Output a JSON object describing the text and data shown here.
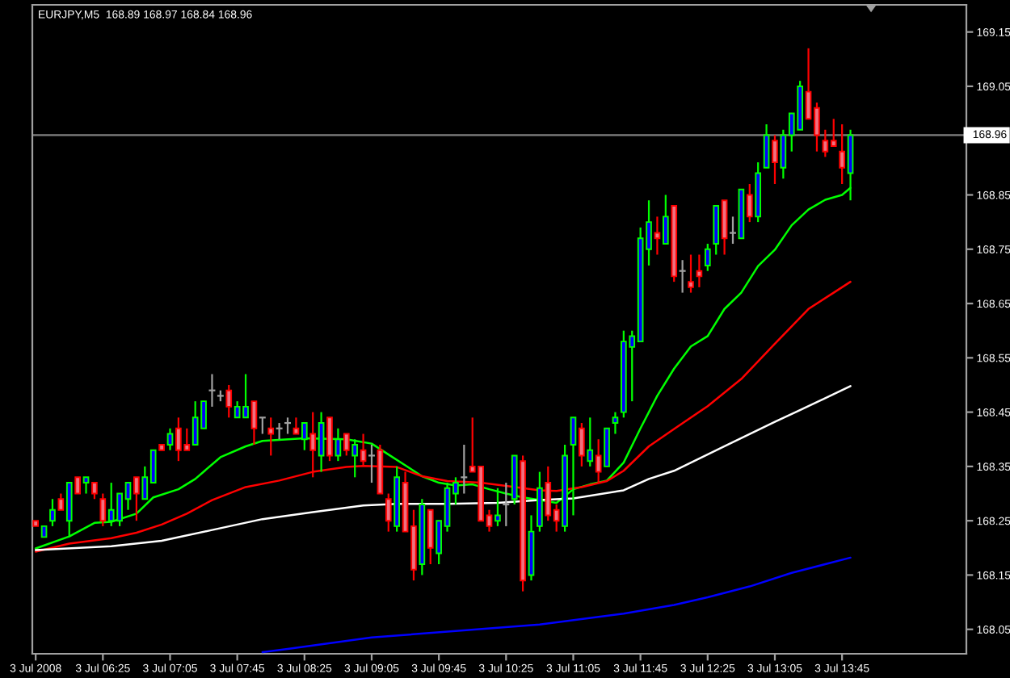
{
  "chart_data": {
    "type": "candlestick",
    "title": "EURJPY,M5  168.89 168.97 168.84 168.96",
    "x": [
      "2008-07-03T05:45",
      "2008-07-03T05:50",
      "2008-07-03T05:55",
      "2008-07-03T06:00",
      "2008-07-03T06:05",
      "2008-07-03T06:10",
      "2008-07-03T06:15",
      "2008-07-03T06:20",
      "2008-07-03T06:25",
      "2008-07-03T06:30",
      "2008-07-03T06:35",
      "2008-07-03T06:40",
      "2008-07-03T06:45",
      "2008-07-03T06:50",
      "2008-07-03T06:55",
      "2008-07-03T07:00",
      "2008-07-03T07:05",
      "2008-07-03T07:10",
      "2008-07-03T07:15",
      "2008-07-03T07:20",
      "2008-07-03T07:25",
      "2008-07-03T07:30",
      "2008-07-03T07:35",
      "2008-07-03T07:40",
      "2008-07-03T07:45",
      "2008-07-03T07:50",
      "2008-07-03T07:55",
      "2008-07-03T08:00",
      "2008-07-03T08:05",
      "2008-07-03T08:10",
      "2008-07-03T08:15",
      "2008-07-03T08:20",
      "2008-07-03T08:25",
      "2008-07-03T08:30",
      "2008-07-03T08:35",
      "2008-07-03T08:40",
      "2008-07-03T08:45",
      "2008-07-03T08:50",
      "2008-07-03T08:55",
      "2008-07-03T09:00",
      "2008-07-03T09:05",
      "2008-07-03T09:10",
      "2008-07-03T09:15",
      "2008-07-03T09:20",
      "2008-07-03T09:25",
      "2008-07-03T09:30",
      "2008-07-03T09:35",
      "2008-07-03T09:40",
      "2008-07-03T09:45",
      "2008-07-03T09:50",
      "2008-07-03T09:55",
      "2008-07-03T10:00",
      "2008-07-03T10:05",
      "2008-07-03T10:10",
      "2008-07-03T10:15",
      "2008-07-03T10:20",
      "2008-07-03T10:25",
      "2008-07-03T10:30",
      "2008-07-03T10:35",
      "2008-07-03T10:40",
      "2008-07-03T10:45",
      "2008-07-03T10:50",
      "2008-07-03T10:55",
      "2008-07-03T11:00",
      "2008-07-03T11:05",
      "2008-07-03T11:10",
      "2008-07-03T11:15",
      "2008-07-03T11:20",
      "2008-07-03T11:25",
      "2008-07-03T11:30",
      "2008-07-03T11:35",
      "2008-07-03T11:40",
      "2008-07-03T11:45",
      "2008-07-03T11:50",
      "2008-07-03T11:55",
      "2008-07-03T12:00",
      "2008-07-03T12:05",
      "2008-07-03T12:10",
      "2008-07-03T12:15",
      "2008-07-03T12:20",
      "2008-07-03T12:25",
      "2008-07-03T12:30",
      "2008-07-03T12:35",
      "2008-07-03T12:40",
      "2008-07-03T12:45",
      "2008-07-03T12:50",
      "2008-07-03T12:55",
      "2008-07-03T13:00",
      "2008-07-03T13:05",
      "2008-07-03T13:10",
      "2008-07-03T13:15",
      "2008-07-03T13:20",
      "2008-07-03T13:25",
      "2008-07-03T13:30",
      "2008-07-03T13:35",
      "2008-07-03T13:40",
      "2008-07-03T13:45",
      "2008-07-03T13:50"
    ],
    "ohlc": [
      [
        168.25,
        168.25,
        168.24,
        168.24
      ],
      [
        168.22,
        168.24,
        168.22,
        168.24
      ],
      [
        168.25,
        168.29,
        168.24,
        168.27
      ],
      [
        168.29,
        168.3,
        168.27,
        168.27
      ],
      [
        168.25,
        168.32,
        168.22,
        168.32
      ],
      [
        168.33,
        168.33,
        168.3,
        168.3
      ],
      [
        168.32,
        168.33,
        168.3,
        168.33
      ],
      [
        168.32,
        168.32,
        168.29,
        168.3
      ],
      [
        168.29,
        168.3,
        168.24,
        168.25
      ],
      [
        168.25,
        168.32,
        168.24,
        168.27
      ],
      [
        168.25,
        168.3,
        168.24,
        168.3
      ],
      [
        168.29,
        168.32,
        168.27,
        168.32
      ],
      [
        168.33,
        168.33,
        168.25,
        168.3
      ],
      [
        168.29,
        168.35,
        168.29,
        168.33
      ],
      [
        168.32,
        168.38,
        168.32,
        168.38
      ],
      [
        168.39,
        168.39,
        168.38,
        168.38
      ],
      [
        168.39,
        168.42,
        168.38,
        168.41
      ],
      [
        168.42,
        168.44,
        168.36,
        168.38
      ],
      [
        168.39,
        168.42,
        168.38,
        168.38
      ],
      [
        168.39,
        168.47,
        168.39,
        168.44
      ],
      [
        168.42,
        168.47,
        168.42,
        168.47
      ],
      [
        168.49,
        168.52,
        168.46,
        168.49
      ],
      [
        168.48,
        168.49,
        168.47,
        168.48
      ],
      [
        168.49,
        168.5,
        168.44,
        168.46
      ],
      [
        168.44,
        168.47,
        168.44,
        168.46
      ],
      [
        168.44,
        168.52,
        168.44,
        168.46
      ],
      [
        168.47,
        168.47,
        168.39,
        168.42
      ],
      [
        168.44,
        168.44,
        168.41,
        168.44
      ],
      [
        168.42,
        168.44,
        168.37,
        168.41
      ],
      [
        168.42,
        168.43,
        168.4,
        168.42
      ],
      [
        168.43,
        168.44,
        168.41,
        168.43
      ],
      [
        168.42,
        168.44,
        168.41,
        168.41
      ],
      [
        168.4,
        168.43,
        168.38,
        168.43
      ],
      [
        168.41,
        168.45,
        168.33,
        168.38
      ],
      [
        168.37,
        168.45,
        168.34,
        168.43
      ],
      [
        168.44,
        168.44,
        168.36,
        168.37
      ],
      [
        168.37,
        168.42,
        168.36,
        168.4
      ],
      [
        168.41,
        168.41,
        168.37,
        168.38
      ],
      [
        168.37,
        168.4,
        168.33,
        168.39
      ],
      [
        168.38,
        168.41,
        168.35,
        168.36
      ],
      [
        168.37,
        168.39,
        168.32,
        168.37
      ],
      [
        168.38,
        168.39,
        168.3,
        168.3
      ],
      [
        168.29,
        168.3,
        168.23,
        168.25
      ],
      [
        168.24,
        168.35,
        168.23,
        168.33
      ],
      [
        168.32,
        168.34,
        168.23,
        168.23
      ],
      [
        168.24,
        168.27,
        168.14,
        168.16
      ],
      [
        168.17,
        168.29,
        168.15,
        168.28
      ],
      [
        168.27,
        168.27,
        168.17,
        168.2
      ],
      [
        168.19,
        168.25,
        168.17,
        168.25
      ],
      [
        168.24,
        168.32,
        168.23,
        168.31
      ],
      [
        168.3,
        168.33,
        168.28,
        168.32
      ],
      [
        168.33,
        168.39,
        168.3,
        168.33
      ],
      [
        168.35,
        168.44,
        168.34,
        168.34
      ],
      [
        168.35,
        168.35,
        168.25,
        168.25
      ],
      [
        168.26,
        168.27,
        168.23,
        168.24
      ],
      [
        168.25,
        168.31,
        168.24,
        168.26
      ],
      [
        168.28,
        168.32,
        168.24,
        168.28
      ],
      [
        168.29,
        168.37,
        168.28,
        168.37
      ],
      [
        168.36,
        168.37,
        168.12,
        168.14
      ],
      [
        168.15,
        168.26,
        168.14,
        168.23
      ],
      [
        168.24,
        168.34,
        168.23,
        168.31
      ],
      [
        168.32,
        168.35,
        168.25,
        168.26
      ],
      [
        168.27,
        168.28,
        168.23,
        168.25
      ],
      [
        168.24,
        168.39,
        168.23,
        168.37
      ],
      [
        168.39,
        168.44,
        168.26,
        168.44
      ],
      [
        168.42,
        168.43,
        168.35,
        168.37
      ],
      [
        168.36,
        168.44,
        168.35,
        168.38
      ],
      [
        168.37,
        168.4,
        168.32,
        168.34
      ],
      [
        168.35,
        168.42,
        168.35,
        168.42
      ],
      [
        168.43,
        168.45,
        168.41,
        168.44
      ],
      [
        168.45,
        168.6,
        168.44,
        168.58
      ],
      [
        168.57,
        168.6,
        168.47,
        168.59
      ],
      [
        168.58,
        168.79,
        168.58,
        168.77
      ],
      [
        168.75,
        168.84,
        168.72,
        168.8
      ],
      [
        168.78,
        168.81,
        168.74,
        168.77
      ],
      [
        168.76,
        168.85,
        168.76,
        168.81
      ],
      [
        168.83,
        168.83,
        168.69,
        168.7
      ],
      [
        168.71,
        168.73,
        168.67,
        168.71
      ],
      [
        168.69,
        168.74,
        168.67,
        168.68
      ],
      [
        168.71,
        168.74,
        168.68,
        168.7
      ],
      [
        168.72,
        168.76,
        168.71,
        168.75
      ],
      [
        168.76,
        168.83,
        168.74,
        168.83
      ],
      [
        168.84,
        168.84,
        168.74,
        168.77
      ],
      [
        168.78,
        168.81,
        168.76,
        168.78
      ],
      [
        168.77,
        168.86,
        168.77,
        168.86
      ],
      [
        168.85,
        168.87,
        168.8,
        168.81
      ],
      [
        168.81,
        168.91,
        168.8,
        168.89
      ],
      [
        168.9,
        168.98,
        168.9,
        168.96
      ],
      [
        168.95,
        168.96,
        168.87,
        168.91
      ],
      [
        168.9,
        168.97,
        168.88,
        168.96
      ],
      [
        168.96,
        169.0,
        168.93,
        169.0
      ],
      [
        168.97,
        169.06,
        168.97,
        169.05
      ],
      [
        169.04,
        169.12,
        168.99,
        168.99
      ],
      [
        169.01,
        169.02,
        168.93,
        168.96
      ],
      [
        168.95,
        168.97,
        168.92,
        168.93
      ],
      [
        168.95,
        168.99,
        168.94,
        168.94
      ],
      [
        168.93,
        168.98,
        168.87,
        168.9
      ],
      [
        168.89,
        168.97,
        168.84,
        168.96
      ]
    ],
    "colors": [
      [
        "#ff0000",
        "#f07080"
      ],
      [
        "#00ff00",
        "#0000ff"
      ],
      [
        "#00ff00",
        "#0000ff"
      ],
      [
        "#ff0000",
        "#f07080"
      ],
      [
        "#00ff00",
        "#0000ff"
      ],
      [
        "#ff0000",
        "#f07080"
      ],
      [
        "#00ff00",
        "#0000ff"
      ],
      [
        "#ff0000",
        "#f07080"
      ],
      [
        "#ff0000",
        "#f07080"
      ],
      [
        "#00ff00",
        "#0000ff"
      ],
      [
        "#00ff00",
        "#0000ff"
      ],
      [
        "#00ff00",
        "#0000ff"
      ],
      [
        "#ff0000",
        "#f07080"
      ],
      [
        "#00ff00",
        "#0000ff"
      ],
      [
        "#00ff00",
        "#0000ff"
      ],
      [
        "#ff0000",
        "#f07080"
      ],
      [
        "#00ff00",
        "#0000ff"
      ],
      [
        "#ff0000",
        "#f07080"
      ],
      [
        "#ff0000",
        "#f07080"
      ],
      [
        "#00ff00",
        "#0000ff"
      ],
      [
        "#00ff00",
        "#0000ff"
      ],
      [
        "#a0a0a0",
        "#a0a0a0"
      ],
      [
        "#a0a0a0",
        "#a0a0a0"
      ],
      [
        "#ff0000",
        "#f07080"
      ],
      [
        "#00ff00",
        "#0000ff"
      ],
      [
        "#00ff00",
        "#0000ff"
      ],
      [
        "#ff0000",
        "#f07080"
      ],
      [
        "#a0a0a0",
        "#a0a0a0"
      ],
      [
        "#ff0000",
        "#f07080"
      ],
      [
        "#a0a0a0",
        "#a0a0a0"
      ],
      [
        "#a0a0a0",
        "#a0a0a0"
      ],
      [
        "#ff0000",
        "#f07080"
      ],
      [
        "#00ff00",
        "#0000ff"
      ],
      [
        "#ff0000",
        "#f07080"
      ],
      [
        "#00ff00",
        "#0000ff"
      ],
      [
        "#ff0000",
        "#f07080"
      ],
      [
        "#00ff00",
        "#0000ff"
      ],
      [
        "#ff0000",
        "#f07080"
      ],
      [
        "#00ff00",
        "#0000ff"
      ],
      [
        "#ff0000",
        "#f07080"
      ],
      [
        "#a0a0a0",
        "#a0a0a0"
      ],
      [
        "#ff0000",
        "#f07080"
      ],
      [
        "#ff0000",
        "#f07080"
      ],
      [
        "#00ff00",
        "#0000ff"
      ],
      [
        "#ff0000",
        "#f07080"
      ],
      [
        "#ff0000",
        "#f07080"
      ],
      [
        "#00ff00",
        "#0000ff"
      ],
      [
        "#ff0000",
        "#f07080"
      ],
      [
        "#00ff00",
        "#0000ff"
      ],
      [
        "#00ff00",
        "#0000ff"
      ],
      [
        "#00ff00",
        "#0000ff"
      ],
      [
        "#a0a0a0",
        "#a0a0a0"
      ],
      [
        "#ff0000",
        "#f07080"
      ],
      [
        "#ff0000",
        "#f07080"
      ],
      [
        "#ff0000",
        "#f07080"
      ],
      [
        "#00ff00",
        "#0000ff"
      ],
      [
        "#a0a0a0",
        "#a0a0a0"
      ],
      [
        "#00ff00",
        "#0000ff"
      ],
      [
        "#ff0000",
        "#f07080"
      ],
      [
        "#00ff00",
        "#0000ff"
      ],
      [
        "#00ff00",
        "#0000ff"
      ],
      [
        "#ff0000",
        "#f07080"
      ],
      [
        "#ff0000",
        "#f07080"
      ],
      [
        "#00ff00",
        "#0000ff"
      ],
      [
        "#00ff00",
        "#0000ff"
      ],
      [
        "#ff0000",
        "#f07080"
      ],
      [
        "#00ff00",
        "#0000ff"
      ],
      [
        "#ff0000",
        "#f07080"
      ],
      [
        "#00ff00",
        "#0000ff"
      ],
      [
        "#00ff00",
        "#0000ff"
      ],
      [
        "#00ff00",
        "#0000ff"
      ],
      [
        "#00ff00",
        "#0000ff"
      ],
      [
        "#00ff00",
        "#0000ff"
      ],
      [
        "#00ff00",
        "#0000ff"
      ],
      [
        "#ff0000",
        "#f07080"
      ],
      [
        "#00ff00",
        "#0000ff"
      ],
      [
        "#ff0000",
        "#f07080"
      ],
      [
        "#a0a0a0",
        "#a0a0a0"
      ],
      [
        "#ff0000",
        "#f07080"
      ],
      [
        "#ff0000",
        "#f07080"
      ],
      [
        "#00ff00",
        "#0000ff"
      ],
      [
        "#00ff00",
        "#0000ff"
      ],
      [
        "#ff0000",
        "#f07080"
      ],
      [
        "#a0a0a0",
        "#a0a0a0"
      ],
      [
        "#00ff00",
        "#0000ff"
      ],
      [
        "#ff0000",
        "#f07080"
      ],
      [
        "#00ff00",
        "#0000ff"
      ],
      [
        "#00ff00",
        "#0000ff"
      ],
      [
        "#ff0000",
        "#f07080"
      ],
      [
        "#00ff00",
        "#0000ff"
      ],
      [
        "#00ff00",
        "#0000ff"
      ],
      [
        "#00ff00",
        "#0000ff"
      ],
      [
        "#ff0000",
        "#f07080"
      ],
      [
        "#ff0000",
        "#f07080"
      ],
      [
        "#ff0000",
        "#f07080"
      ],
      [
        "#ff0000",
        "#f07080"
      ],
      [
        "#ff0000",
        "#f07080"
      ],
      [
        "#00ff00",
        "#0000ff"
      ]
    ],
    "series": [
      {
        "type": "line",
        "color": "#00ff00",
        "x": [
          "2008-07-03T05:45",
          "2008-07-03T06:05",
          "2008-07-03T06:20",
          "2008-07-03T06:30",
          "2008-07-03T06:45",
          "2008-07-03T06:55",
          "2008-07-03T07:10",
          "2008-07-03T07:20",
          "2008-07-03T07:35",
          "2008-07-03T07:50",
          "2008-07-03T08:00",
          "2008-07-03T08:25",
          "2008-07-03T08:50",
          "2008-07-03T09:05",
          "2008-07-03T09:15",
          "2008-07-03T09:25",
          "2008-07-03T09:35",
          "2008-07-03T09:45",
          "2008-07-03T09:55",
          "2008-07-03T10:05",
          "2008-07-03T10:15",
          "2008-07-03T10:25",
          "2008-07-03T10:35",
          "2008-07-03T10:45",
          "2008-07-03T10:55",
          "2008-07-03T11:05",
          "2008-07-03T11:15",
          "2008-07-03T11:25",
          "2008-07-03T11:35",
          "2008-07-03T11:45",
          "2008-07-03T11:55",
          "2008-07-03T12:05",
          "2008-07-03T12:15",
          "2008-07-03T12:25",
          "2008-07-03T12:35",
          "2008-07-03T12:45",
          "2008-07-03T12:55",
          "2008-07-03T13:05",
          "2008-07-03T13:15",
          "2008-07-03T13:25",
          "2008-07-03T13:35",
          "2008-07-03T13:45",
          "2008-07-03T13:50"
        ],
        "values": [
          168.199,
          168.221,
          168.246,
          168.248,
          168.263,
          168.293,
          168.308,
          168.327,
          168.367,
          168.387,
          168.397,
          168.402,
          168.4,
          168.392,
          168.372,
          168.352,
          168.332,
          168.32,
          168.315,
          168.317,
          168.308,
          168.3,
          168.293,
          168.288,
          168.283,
          168.308,
          168.317,
          168.324,
          168.357,
          168.42,
          168.48,
          168.53,
          168.571,
          168.59,
          168.64,
          168.67,
          168.719,
          168.749,
          168.794,
          168.823,
          168.841,
          168.85,
          168.863
        ]
      },
      {
        "type": "line",
        "color": "#ff0000",
        "x": [
          "2008-07-03T05:45",
          "2008-07-03T06:05",
          "2008-07-03T06:30",
          "2008-07-03T06:45",
          "2008-07-03T07:00",
          "2008-07-03T07:15",
          "2008-07-03T07:30",
          "2008-07-03T07:50",
          "2008-07-03T08:10",
          "2008-07-03T08:30",
          "2008-07-03T08:50",
          "2008-07-03T09:00",
          "2008-07-03T09:20",
          "2008-07-03T09:35",
          "2008-07-03T09:50",
          "2008-07-03T10:10",
          "2008-07-03T10:25",
          "2008-07-03T10:45",
          "2008-07-03T10:55",
          "2008-07-03T11:10",
          "2008-07-03T11:25",
          "2008-07-03T11:35",
          "2008-07-03T11:50",
          "2008-07-03T12:05",
          "2008-07-03T12:25",
          "2008-07-03T12:45",
          "2008-07-03T13:05",
          "2008-07-03T13:25",
          "2008-07-03T13:40",
          "2008-07-03T13:50"
        ],
        "values": [
          168.193,
          168.208,
          168.218,
          168.228,
          168.243,
          168.263,
          168.288,
          168.312,
          168.324,
          168.34,
          168.349,
          168.351,
          168.349,
          168.332,
          168.323,
          168.32,
          168.314,
          168.306,
          168.305,
          168.312,
          168.323,
          168.342,
          168.387,
          168.419,
          168.461,
          168.511,
          168.576,
          168.64,
          168.67,
          168.69
        ]
      },
      {
        "type": "line",
        "color": "#ffffff",
        "x": [
          "2008-07-03T05:45",
          "2008-07-03T06:30",
          "2008-07-03T07:00",
          "2008-07-03T07:30",
          "2008-07-03T08:00",
          "2008-07-03T08:30",
          "2008-07-03T09:00",
          "2008-07-03T09:20",
          "2008-07-03T09:50",
          "2008-07-03T10:20",
          "2008-07-03T10:45",
          "2008-07-03T11:05",
          "2008-07-03T11:35",
          "2008-07-03T11:50",
          "2008-07-03T12:05",
          "2008-07-03T12:35",
          "2008-07-03T13:05",
          "2008-07-03T13:25",
          "2008-07-03T13:50"
        ],
        "values": [
          168.196,
          168.203,
          168.213,
          168.233,
          168.253,
          168.266,
          168.278,
          168.281,
          168.281,
          168.283,
          168.288,
          168.291,
          168.306,
          168.327,
          168.342,
          168.387,
          168.432,
          168.461,
          168.498
        ]
      },
      {
        "type": "line",
        "color": "#0000ff",
        "x": [
          "2008-07-03T08:00",
          "2008-07-03T08:15",
          "2008-07-03T09:05",
          "2008-07-03T09:55",
          "2008-07-03T10:45",
          "2008-07-03T11:35",
          "2008-07-03T12:05",
          "2008-07-03T12:25",
          "2008-07-03T12:50",
          "2008-07-03T13:15",
          "2008-07-03T13:50"
        ],
        "values": [
          168.008,
          168.014,
          168.035,
          168.047,
          168.059,
          168.079,
          168.095,
          168.109,
          168.129,
          168.154,
          168.182
        ]
      }
    ],
    "xlim": [
      "2008-07-03T05:43",
      "2008-07-03T14:59"
    ],
    "xticks": [
      {
        "value": "2008-07-03T05:45",
        "label": "3 Jul 2008"
      },
      {
        "value": "2008-07-03T06:25",
        "label": "3 Jul 06:25"
      },
      {
        "value": "2008-07-03T07:05",
        "label": "3 Jul 07:05"
      },
      {
        "value": "2008-07-03T07:45",
        "label": "3 Jul 07:45"
      },
      {
        "value": "2008-07-03T08:25",
        "label": "3 Jul 08:25"
      },
      {
        "value": "2008-07-03T09:05",
        "label": "3 Jul 09:05"
      },
      {
        "value": "2008-07-03T09:45",
        "label": "3 Jul 09:45"
      },
      {
        "value": "2008-07-03T10:25",
        "label": "3 Jul 10:25"
      },
      {
        "value": "2008-07-03T11:05",
        "label": "3 Jul 11:05"
      },
      {
        "value": "2008-07-03T11:45",
        "label": "3 Jul 11:45"
      },
      {
        "value": "2008-07-03T12:25",
        "label": "3 Jul 12:25"
      },
      {
        "value": "2008-07-03T13:05",
        "label": "3 Jul 13:05"
      },
      {
        "value": "2008-07-03T13:45",
        "label": "3 Jul 13:45"
      }
    ],
    "ylim": [
      168.005,
      169.2
    ],
    "yticks": [
      168.05,
      168.15,
      168.25,
      168.35,
      168.45,
      168.55,
      168.65,
      168.75,
      168.85,
      {
        "value": 168.95,
        "label": null
      },
      169.05,
      169.15
    ],
    "ref_lines": [
      {
        "axis": "y",
        "value": 168.96,
        "label": "168.96",
        "color": "#808080"
      }
    ],
    "grid": false
  }
}
